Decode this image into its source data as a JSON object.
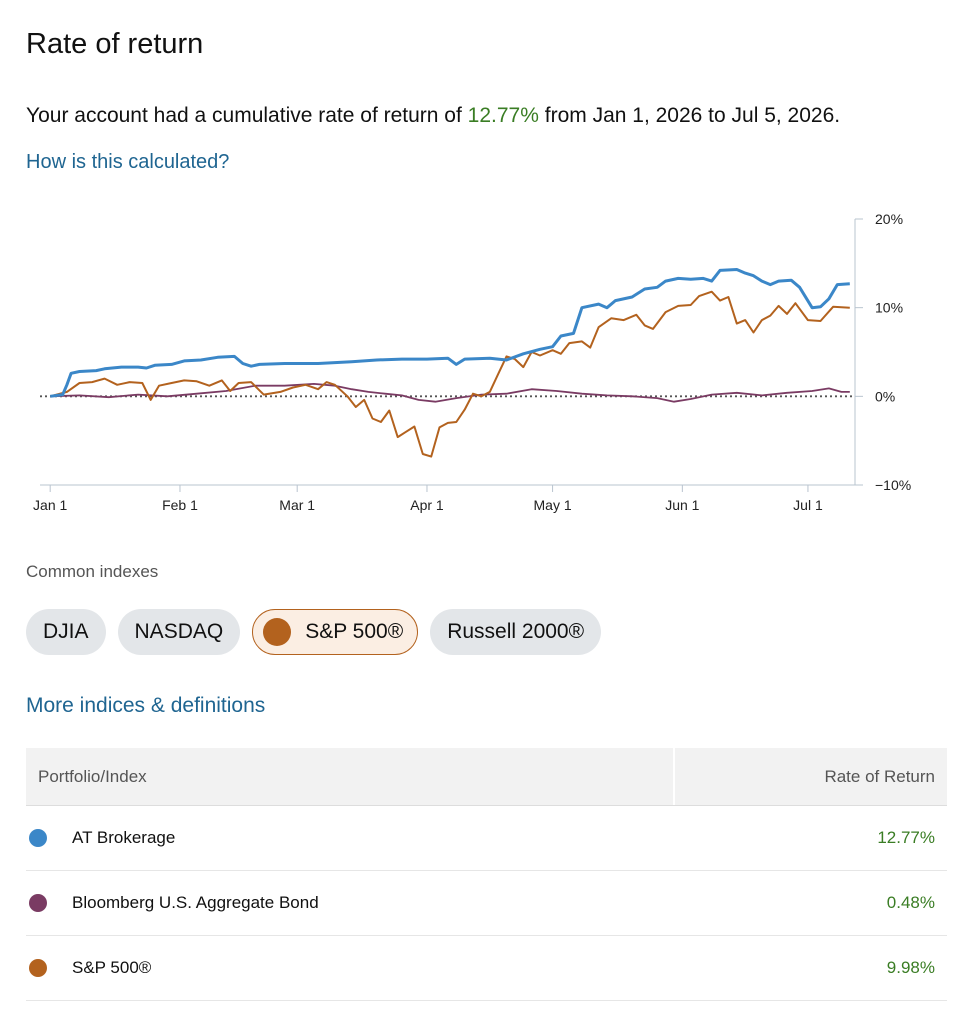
{
  "header": {
    "title": "Rate of return",
    "summary_prefix": "Your account had a cumulative rate of return of",
    "summary_pct": "12.77%",
    "summary_suffix": "from Jan 1, 2026 to Jul 5, 2026.",
    "how_link": "How is this calculated?"
  },
  "chart_data": {
    "type": "line",
    "x_ticks": [
      "Jan 1",
      "Feb 1",
      "Mar 1",
      "Apr 1",
      "May 1",
      "Jun 1",
      "Jul 1"
    ],
    "y_ticks": [
      "20%",
      "10%",
      "0%",
      "−10%"
    ],
    "ylim": [
      -10,
      20
    ],
    "xlim": [
      "2026-01-01",
      "2026-07-05"
    ],
    "zero_line": true,
    "series": [
      {
        "name": "AT Brokerage",
        "color": "#3b87c8",
        "points": [
          [
            "2026-01-01",
            0
          ],
          [
            "2026-01-04",
            0.2
          ],
          [
            "2026-01-05",
            1.3
          ],
          [
            "2026-01-06",
            2.6
          ],
          [
            "2026-01-08",
            2.8
          ],
          [
            "2026-01-12",
            2.9
          ],
          [
            "2026-01-14",
            3.1
          ],
          [
            "2026-01-18",
            3.3
          ],
          [
            "2026-01-22",
            3.3
          ],
          [
            "2026-01-24",
            3.2
          ],
          [
            "2026-01-26",
            3.5
          ],
          [
            "2026-01-30",
            3.6
          ],
          [
            "2026-02-02",
            4.0
          ],
          [
            "2026-02-06",
            4.1
          ],
          [
            "2026-02-10",
            4.4
          ],
          [
            "2026-02-14",
            4.5
          ],
          [
            "2026-02-16",
            3.7
          ],
          [
            "2026-02-18",
            3.4
          ],
          [
            "2026-02-20",
            3.6
          ],
          [
            "2026-02-26",
            3.7
          ],
          [
            "2026-03-06",
            3.7
          ],
          [
            "2026-03-14",
            3.9
          ],
          [
            "2026-03-20",
            4.1
          ],
          [
            "2026-03-26",
            4.2
          ],
          [
            "2026-04-01",
            4.2
          ],
          [
            "2026-04-06",
            4.3
          ],
          [
            "2026-04-08",
            3.6
          ],
          [
            "2026-04-10",
            4.2
          ],
          [
            "2026-04-16",
            4.3
          ],
          [
            "2026-04-20",
            4.1
          ],
          [
            "2026-04-24",
            4.8
          ],
          [
            "2026-04-28",
            5.3
          ],
          [
            "2026-05-01",
            5.6
          ],
          [
            "2026-05-03",
            6.8
          ],
          [
            "2026-05-06",
            7.1
          ],
          [
            "2026-05-08",
            10.0
          ],
          [
            "2026-05-12",
            10.4
          ],
          [
            "2026-05-14",
            10.0
          ],
          [
            "2026-05-16",
            10.8
          ],
          [
            "2026-05-20",
            11.2
          ],
          [
            "2026-05-23",
            12.1
          ],
          [
            "2026-05-26",
            12.3
          ],
          [
            "2026-05-28",
            13.0
          ],
          [
            "2026-05-31",
            13.3
          ],
          [
            "2026-06-03",
            13.2
          ],
          [
            "2026-06-06",
            13.3
          ],
          [
            "2026-06-08",
            13.0
          ],
          [
            "2026-06-10",
            14.2
          ],
          [
            "2026-06-14",
            14.3
          ],
          [
            "2026-06-16",
            13.9
          ],
          [
            "2026-06-18",
            13.6
          ],
          [
            "2026-06-20",
            13.0
          ],
          [
            "2026-06-22",
            12.6
          ],
          [
            "2026-06-24",
            13.0
          ],
          [
            "2026-06-27",
            13.1
          ],
          [
            "2026-06-29",
            12.3
          ],
          [
            "2026-07-02",
            10.0
          ],
          [
            "2026-07-04",
            10.1
          ],
          [
            "2026-07-06",
            11.0
          ],
          [
            "2026-07-08",
            12.6
          ],
          [
            "2026-07-11",
            12.7
          ]
        ]
      },
      {
        "name": "Bloomberg U.S. Aggregate Bond",
        "color": "#7a3b63",
        "points": [
          [
            "2026-01-01",
            0
          ],
          [
            "2026-01-08",
            0.1
          ],
          [
            "2026-01-15",
            -0.1
          ],
          [
            "2026-01-22",
            0.2
          ],
          [
            "2026-01-29",
            0
          ],
          [
            "2026-02-05",
            0.3
          ],
          [
            "2026-02-12",
            0.6
          ],
          [
            "2026-02-19",
            1.2
          ],
          [
            "2026-02-26",
            1.2
          ],
          [
            "2026-03-05",
            1.4
          ],
          [
            "2026-03-10",
            1.2
          ],
          [
            "2026-03-14",
            0.8
          ],
          [
            "2026-03-18",
            0.5
          ],
          [
            "2026-03-22",
            0.3
          ],
          [
            "2026-03-26",
            0.1
          ],
          [
            "2026-03-30",
            -0.4
          ],
          [
            "2026-04-03",
            -0.6
          ],
          [
            "2026-04-08",
            -0.2
          ],
          [
            "2026-04-14",
            0.2
          ],
          [
            "2026-04-20",
            0.3
          ],
          [
            "2026-04-26",
            0.8
          ],
          [
            "2026-05-02",
            0.6
          ],
          [
            "2026-05-08",
            0.3
          ],
          [
            "2026-05-14",
            0.1
          ],
          [
            "2026-05-20",
            0
          ],
          [
            "2026-05-26",
            -0.2
          ],
          [
            "2026-05-30",
            -0.6
          ],
          [
            "2026-06-03",
            -0.3
          ],
          [
            "2026-06-08",
            0.2
          ],
          [
            "2026-06-14",
            0.4
          ],
          [
            "2026-06-20",
            0.1
          ],
          [
            "2026-06-26",
            0.4
          ],
          [
            "2026-07-02",
            0.6
          ],
          [
            "2026-07-06",
            0.9
          ],
          [
            "2026-07-09",
            0.5
          ],
          [
            "2026-07-11",
            0.5
          ]
        ]
      },
      {
        "name": "S&P 500®",
        "color": "#b3621e",
        "points": [
          [
            "2026-01-01",
            0
          ],
          [
            "2026-01-05",
            0.5
          ],
          [
            "2026-01-08",
            1.5
          ],
          [
            "2026-01-11",
            1.6
          ],
          [
            "2026-01-14",
            2.0
          ],
          [
            "2026-01-17",
            1.3
          ],
          [
            "2026-01-20",
            1.6
          ],
          [
            "2026-01-23",
            1.5
          ],
          [
            "2026-01-25",
            -0.4
          ],
          [
            "2026-01-27",
            1.2
          ],
          [
            "2026-01-30",
            1.5
          ],
          [
            "2026-02-02",
            1.8
          ],
          [
            "2026-02-05",
            1.7
          ],
          [
            "2026-02-08",
            1.2
          ],
          [
            "2026-02-11",
            1.8
          ],
          [
            "2026-02-13",
            0.6
          ],
          [
            "2026-02-15",
            1.5
          ],
          [
            "2026-02-18",
            1.6
          ],
          [
            "2026-02-21",
            0.2
          ],
          [
            "2026-02-25",
            0.5
          ],
          [
            "2026-02-28",
            1.0
          ],
          [
            "2026-03-03",
            1.3
          ],
          [
            "2026-03-06",
            0.8
          ],
          [
            "2026-03-08",
            1.6
          ],
          [
            "2026-03-10",
            1.3
          ],
          [
            "2026-03-13",
            0
          ],
          [
            "2026-03-15",
            -1.2
          ],
          [
            "2026-03-17",
            -0.4
          ],
          [
            "2026-03-19",
            -2.5
          ],
          [
            "2026-03-21",
            -2.9
          ],
          [
            "2026-03-23",
            -1.6
          ],
          [
            "2026-03-25",
            -4.6
          ],
          [
            "2026-03-27",
            -4.0
          ],
          [
            "2026-03-29",
            -3.4
          ],
          [
            "2026-03-31",
            -6.5
          ],
          [
            "2026-04-02",
            -6.8
          ],
          [
            "2026-04-04",
            -3.5
          ],
          [
            "2026-04-06",
            -3.0
          ],
          [
            "2026-04-08",
            -2.9
          ],
          [
            "2026-04-10",
            -1.5
          ],
          [
            "2026-04-12",
            0.3
          ],
          [
            "2026-04-14",
            0
          ],
          [
            "2026-04-16",
            0.5
          ],
          [
            "2026-04-18",
            2.5
          ],
          [
            "2026-04-20",
            4.5
          ],
          [
            "2026-04-22",
            4.2
          ],
          [
            "2026-04-24",
            3.3
          ],
          [
            "2026-04-26",
            5.0
          ],
          [
            "2026-04-28",
            4.6
          ],
          [
            "2026-05-01",
            5.2
          ],
          [
            "2026-05-03",
            4.8
          ],
          [
            "2026-05-05",
            6.0
          ],
          [
            "2026-05-08",
            6.2
          ],
          [
            "2026-05-10",
            5.5
          ],
          [
            "2026-05-12",
            7.8
          ],
          [
            "2026-05-15",
            8.8
          ],
          [
            "2026-05-18",
            8.6
          ],
          [
            "2026-05-21",
            9.2
          ],
          [
            "2026-05-23",
            8.0
          ],
          [
            "2026-05-25",
            7.6
          ],
          [
            "2026-05-28",
            9.5
          ],
          [
            "2026-05-31",
            10.2
          ],
          [
            "2026-06-03",
            10.3
          ],
          [
            "2026-06-05",
            11.3
          ],
          [
            "2026-06-08",
            11.8
          ],
          [
            "2026-06-10",
            10.8
          ],
          [
            "2026-06-12",
            11.2
          ],
          [
            "2026-06-14",
            8.2
          ],
          [
            "2026-06-16",
            8.6
          ],
          [
            "2026-06-18",
            7.2
          ],
          [
            "2026-06-20",
            8.6
          ],
          [
            "2026-06-22",
            9.1
          ],
          [
            "2026-06-24",
            10.2
          ],
          [
            "2026-06-26",
            9.3
          ],
          [
            "2026-06-28",
            10.5
          ],
          [
            "2026-07-01",
            8.6
          ],
          [
            "2026-07-04",
            8.5
          ],
          [
            "2026-07-07",
            10.1
          ],
          [
            "2026-07-11",
            10.0
          ]
        ]
      }
    ]
  },
  "indexes": {
    "label": "Common indexes",
    "chips": [
      "DJIA",
      "NASDAQ",
      "S&P 500®",
      "Russell 2000®"
    ],
    "selected": "S&P 500®",
    "selected_color": "#b3621e",
    "more_link": "More indices & definitions"
  },
  "table": {
    "col_portfolio": "Portfolio/Index",
    "col_return": "Rate of Return",
    "rows": [
      {
        "name": "AT Brokerage",
        "value": "12.77%",
        "color": "#3b87c8"
      },
      {
        "name": "Bloomberg U.S. Aggregate Bond",
        "value": "0.48%",
        "color": "#7a3b63"
      },
      {
        "name": "S&P 500®",
        "value": "9.98%",
        "color": "#b3621e"
      }
    ]
  },
  "colors": {
    "positive": "#3a7d24",
    "link": "#1f6591"
  }
}
